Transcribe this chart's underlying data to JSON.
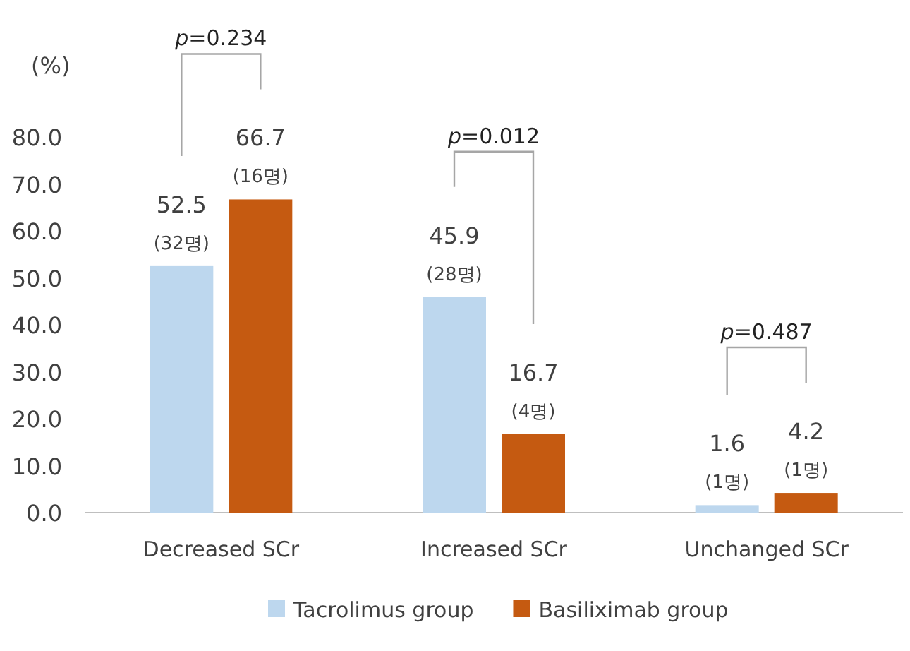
{
  "chart_data": {
    "type": "bar",
    "ylabel": "(%)",
    "categories": [
      "Decreased SCr",
      "Increased SCr",
      "Unchanged SCr"
    ],
    "series": [
      {
        "name": "Tacrolimus group",
        "color": "#bdd7ee",
        "values": [
          52.5,
          45.9,
          1.6
        ],
        "value_labels": [
          "52.5\n(32명)",
          "45.9\n(28명)",
          "1.6\n(1명)"
        ]
      },
      {
        "name": "Basiliximab group",
        "color": "#c55a11",
        "values": [
          66.7,
          16.7,
          4.2
        ],
        "value_labels": [
          "66.7\n(16명)",
          "16.7\n(4명)",
          "4.2\n(1명)"
        ]
      }
    ],
    "ylim": [
      0,
      80
    ],
    "yticks": [
      {
        "value": 0,
        "label": "0.0"
      },
      {
        "value": 10,
        "label": "10.0"
      },
      {
        "value": 20,
        "label": "20.0"
      },
      {
        "value": 30,
        "label": "30.0"
      },
      {
        "value": 40,
        "label": "40.0"
      },
      {
        "value": 50,
        "label": "50.0"
      },
      {
        "value": 60,
        "label": "60.0"
      },
      {
        "value": 70,
        "label": "70.0"
      },
      {
        "value": 80,
        "label": "80.0"
      }
    ],
    "annotations": [
      "p=0.234",
      "p=0.012",
      "p=0.487"
    ],
    "grid": false,
    "legend": "bottom"
  }
}
